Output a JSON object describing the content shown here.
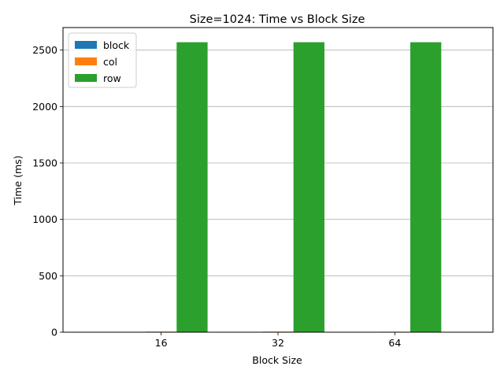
{
  "chart_data": {
    "type": "bar",
    "title": "Size=1024: Time vs Block Size",
    "xlabel": "Block Size",
    "ylabel": "Time (ms)",
    "categories": [
      "16",
      "32",
      "64"
    ],
    "series": [
      {
        "name": "block",
        "values": [
          3,
          3,
          1
        ],
        "color": "#1f77b4"
      },
      {
        "name": "col",
        "values": [
          5,
          5,
          4
        ],
        "color": "#ff7f0e"
      },
      {
        "name": "row",
        "values": [
          2570,
          2570,
          2570
        ],
        "color": "#2ca02c"
      }
    ],
    "ylim": [
      0,
      2700
    ],
    "yticks": [
      0,
      500,
      1000,
      1500,
      2000,
      2500
    ],
    "grid": "y-axis",
    "legend_position": "top-left"
  }
}
